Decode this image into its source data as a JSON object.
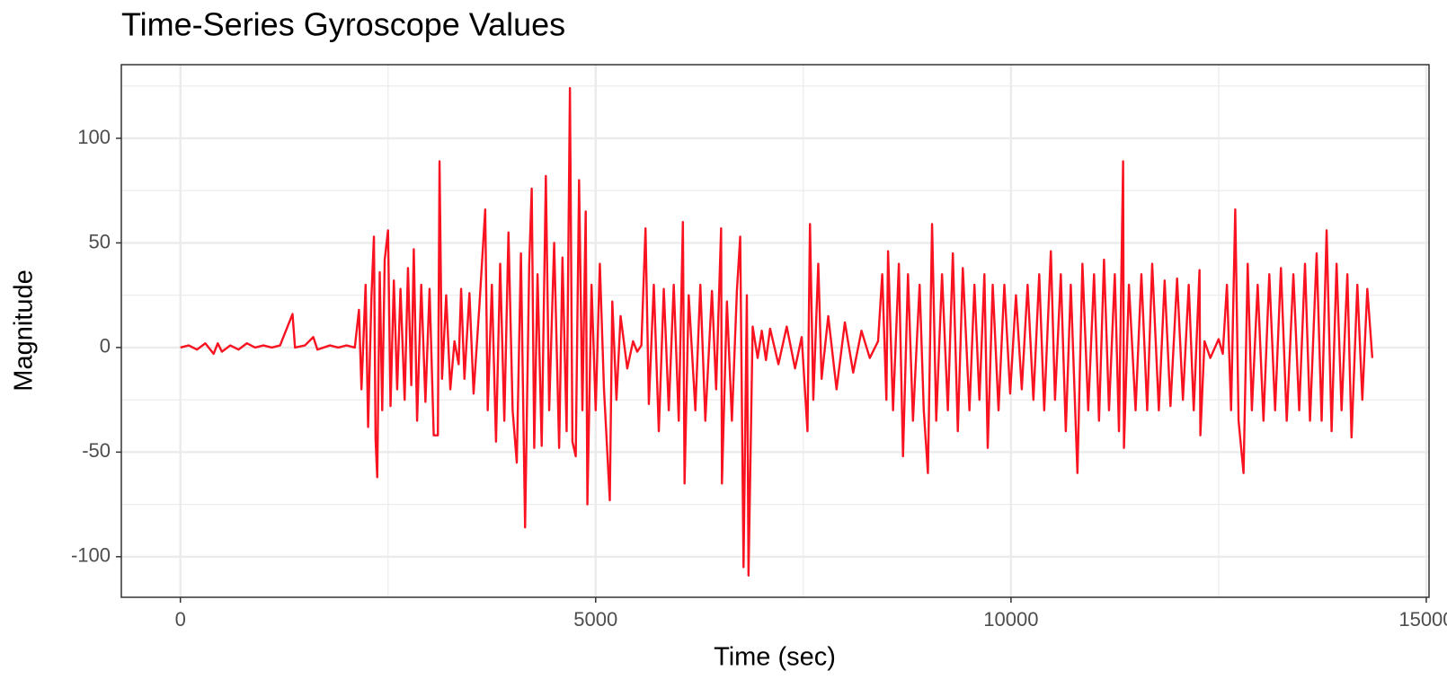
{
  "chart_data": {
    "type": "line",
    "title": "Time-Series Gyroscope Values",
    "x_label": "Time (sec)",
    "y_label": "Magnitude",
    "color": "#f91220",
    "xlim": [
      -711,
      15033
    ],
    "ylim": [
      -119.4,
      135.2
    ],
    "xticks": [
      0,
      5000,
      10000,
      15000
    ],
    "yticks": [
      -100,
      -50,
      0,
      50,
      100
    ],
    "minor_xticks": [
      2500,
      7500,
      12500
    ],
    "minor_yticks": [
      -75,
      -25,
      25,
      75,
      125
    ],
    "grid": true,
    "x": [
      0,
      100,
      200,
      300,
      400,
      450,
      500,
      600,
      700,
      800,
      900,
      1000,
      1100,
      1200,
      1350,
      1380,
      1500,
      1600,
      1650,
      1800,
      1900,
      2000,
      2100,
      2150,
      2180,
      2230,
      2260,
      2300,
      2330,
      2350,
      2370,
      2400,
      2430,
      2460,
      2500,
      2530,
      2570,
      2610,
      2650,
      2700,
      2740,
      2780,
      2810,
      2850,
      2900,
      2950,
      3000,
      3050,
      3100,
      3120,
      3150,
      3200,
      3250,
      3300,
      3350,
      3380,
      3420,
      3480,
      3530,
      3600,
      3670,
      3700,
      3750,
      3800,
      3850,
      3900,
      3950,
      4000,
      4050,
      4100,
      4150,
      4200,
      4230,
      4260,
      4300,
      4350,
      4400,
      4440,
      4500,
      4560,
      4600,
      4650,
      4690,
      4720,
      4760,
      4800,
      4840,
      4880,
      4900,
      4950,
      5000,
      5050,
      5100,
      5170,
      5200,
      5250,
      5300,
      5380,
      5450,
      5500,
      5550,
      5600,
      5640,
      5700,
      5760,
      5820,
      5880,
      5940,
      6000,
      6050,
      6070,
      6120,
      6200,
      6260,
      6320,
      6400,
      6450,
      6510,
      6520,
      6580,
      6640,
      6700,
      6740,
      6780,
      6820,
      6840,
      6890,
      6950,
      7000,
      7050,
      7100,
      7200,
      7300,
      7400,
      7480,
      7550,
      7580,
      7620,
      7680,
      7720,
      7800,
      7900,
      8000,
      8100,
      8200,
      8300,
      8400,
      8450,
      8500,
      8520,
      8580,
      8650,
      8700,
      8760,
      8820,
      8900,
      8950,
      9000,
      9050,
      9100,
      9170,
      9240,
      9300,
      9360,
      9420,
      9500,
      9560,
      9620,
      9680,
      9720,
      9780,
      9850,
      9920,
      9990,
      10060,
      10130,
      10200,
      10270,
      10340,
      10400,
      10480,
      10530,
      10600,
      10660,
      10720,
      10800,
      10860,
      10930,
      11000,
      11060,
      11120,
      11180,
      11250,
      11300,
      11350,
      11360,
      11420,
      11500,
      11570,
      11640,
      11700,
      11780,
      11850,
      11920,
      12000,
      12070,
      12140,
      12200,
      12270,
      12280,
      12330,
      12400,
      12500,
      12550,
      12600,
      12650,
      12700,
      12740,
      12800,
      12850,
      12900,
      12970,
      13040,
      13110,
      13180,
      13250,
      13320,
      13400,
      13470,
      13540,
      13600,
      13680,
      13740,
      13800,
      13860,
      13920,
      13980,
      14050,
      14100,
      14170,
      14230,
      14290,
      14350
    ],
    "values": [
      0,
      1,
      -1,
      2,
      -3,
      2,
      -2,
      1,
      -1,
      2,
      0,
      1,
      0,
      1,
      16,
      0,
      1,
      5,
      -1,
      1,
      0,
      1,
      0,
      18,
      -20,
      30,
      -38,
      24,
      53,
      -44,
      -62,
      36,
      -30,
      42,
      56,
      -28,
      32,
      -20,
      28,
      -25,
      38,
      -18,
      47,
      -35,
      30,
      -26,
      28,
      -42,
      -42,
      89,
      -15,
      25,
      -20,
      3,
      -8,
      28,
      -15,
      26,
      -22,
      20,
      66,
      -30,
      30,
      -45,
      40,
      -35,
      55,
      -30,
      -55,
      45,
      -86,
      40,
      76,
      -48,
      35,
      -47,
      82,
      -30,
      50,
      -48,
      43,
      -40,
      124,
      -45,
      -52,
      80,
      -30,
      65,
      -75,
      30,
      -30,
      40,
      -20,
      -73,
      22,
      -25,
      15,
      -10,
      3,
      -2,
      1,
      57,
      -27,
      30,
      -40,
      28,
      -30,
      30,
      -35,
      60,
      -65,
      25,
      -30,
      30,
      -35,
      27,
      -20,
      57,
      -65,
      22,
      -35,
      27,
      53,
      -105,
      25,
      -109,
      10,
      -5,
      8,
      -6,
      9,
      -8,
      10,
      -10,
      5,
      -40,
      59,
      -25,
      40,
      -15,
      15,
      -20,
      12,
      -12,
      8,
      -5,
      3,
      35,
      -25,
      46,
      -30,
      40,
      -52,
      35,
      -35,
      30,
      -30,
      -60,
      59,
      -35,
      35,
      -30,
      45,
      -40,
      38,
      -30,
      30,
      -25,
      35,
      -48,
      30,
      -30,
      30,
      -22,
      25,
      -20,
      30,
      -25,
      35,
      -30,
      46,
      -25,
      35,
      -40,
      30,
      -60,
      40,
      -30,
      35,
      -35,
      42,
      -30,
      35,
      -40,
      89,
      -48,
      30,
      -30,
      35,
      -30,
      40,
      -30,
      32,
      -28,
      33,
      -25,
      30,
      -30,
      37,
      -42,
      3,
      -5,
      4,
      -3,
      30,
      -30,
      66,
      -35,
      -60,
      40,
      -30,
      30,
      -35,
      35,
      -30,
      38,
      -35,
      35,
      -30,
      40,
      -35,
      45,
      -35,
      56,
      -40,
      40,
      -30,
      35,
      -43,
      30,
      -25,
      28,
      -5
    ]
  }
}
